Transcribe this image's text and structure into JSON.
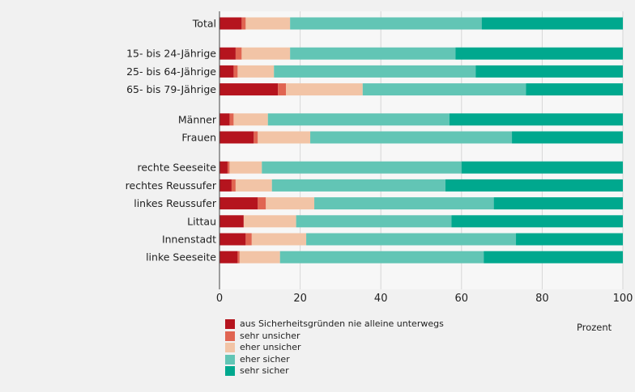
{
  "chart_data": {
    "type": "bar",
    "orientation": "horizontal",
    "stacked": true,
    "xlabel": "Prozent",
    "xlim": [
      0,
      100
    ],
    "xticks": [
      "0",
      "20",
      "40",
      "60",
      "80",
      "100"
    ],
    "grid": true,
    "legend_position": "bottom",
    "groups": [
      [
        "Total"
      ],
      [
        "15- bis 24-Jährige",
        "25- bis 64-Jährige",
        "65- bis 79-Jährige"
      ],
      [
        "Männer",
        "Frauen"
      ],
      [
        "rechte Seeseite",
        "rechtes Reussufer",
        "linkes Reussufer",
        "Littau",
        "Innenstadt",
        "linke Seeseite"
      ]
    ],
    "categories": [
      "Total",
      "15- bis 24-Jährige",
      "25- bis 64-Jährige",
      "65- bis 79-Jährige",
      "Männer",
      "Frauen",
      "rechte Seeseite",
      "rechtes Reussufer",
      "linkes Reussufer",
      "Littau",
      "Innenstadt",
      "linke Seeseite"
    ],
    "series": [
      {
        "name": "aus Sicherheitsgründen nie alleine unterwegs",
        "color": "#b5141e",
        "values": [
          5.5,
          4.0,
          3.5,
          14.5,
          2.5,
          8.5,
          2.0,
          3.0,
          9.5,
          6.0,
          6.5,
          4.5
        ]
      },
      {
        "name": "sehr unsicher",
        "color": "#e06552",
        "values": [
          1.0,
          1.5,
          1.0,
          2.0,
          1.0,
          1.0,
          0.5,
          1.0,
          2.0,
          0.0,
          1.5,
          0.5
        ]
      },
      {
        "name": "eher unsicher",
        "color": "#f2c4a6",
        "values": [
          11.0,
          12.0,
          9.0,
          19.0,
          8.5,
          13.0,
          8.0,
          9.0,
          12.0,
          13.0,
          13.5,
          10.0
        ]
      },
      {
        "name": "eher sicher",
        "color": "#62c5b5",
        "values": [
          47.5,
          41.0,
          50.0,
          40.5,
          45.0,
          50.0,
          49.5,
          43.0,
          44.5,
          38.5,
          52.0,
          50.5
        ]
      },
      {
        "name": "sehr sicher",
        "color": "#00a88e",
        "values": [
          35.0,
          41.5,
          36.5,
          24.0,
          43.0,
          27.5,
          40.0,
          44.0,
          32.0,
          42.5,
          26.5,
          34.5
        ]
      }
    ]
  }
}
